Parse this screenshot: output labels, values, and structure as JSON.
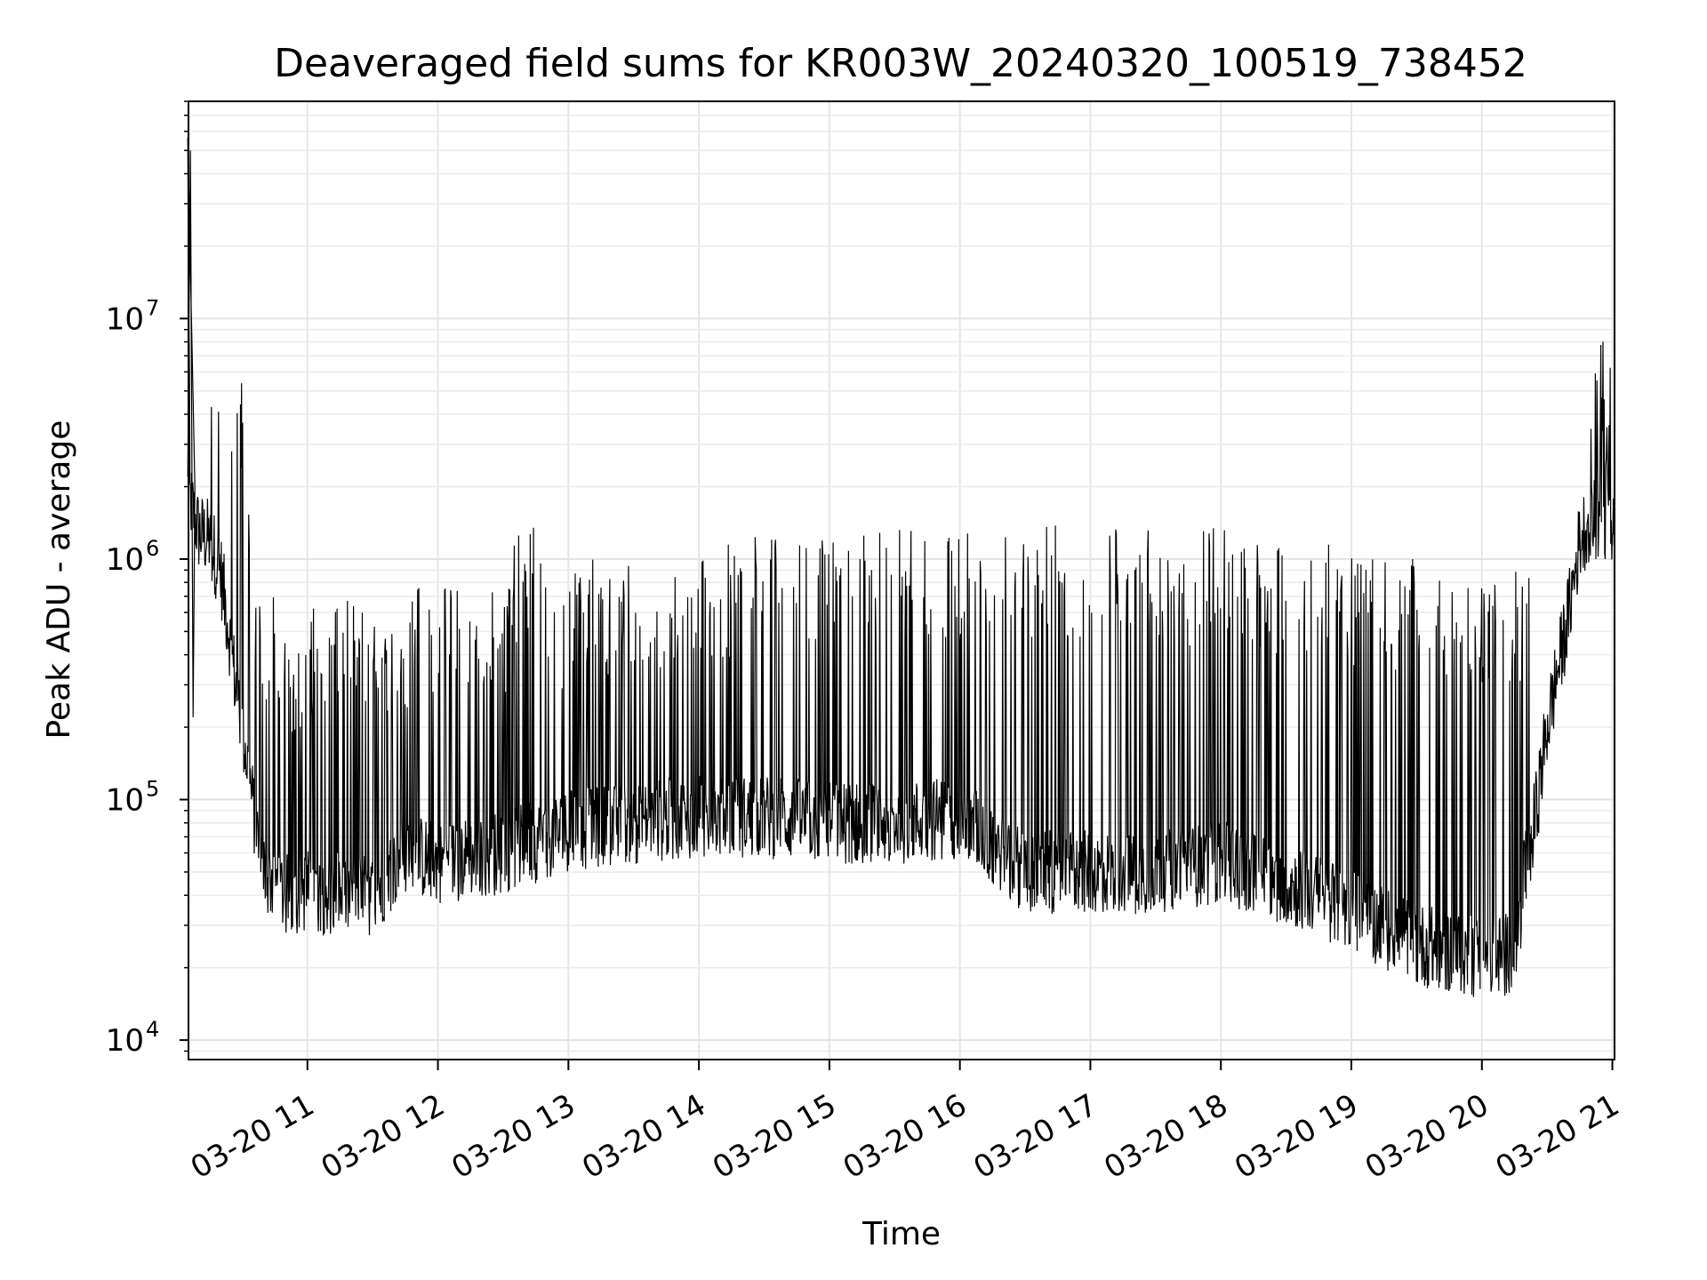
{
  "chart_data": {
    "type": "line",
    "title": "Deaveraged field sums for KR003W_20240320_100519_738452",
    "xlabel": "Time",
    "ylabel": "Peak ADU - average",
    "y_scale": "log",
    "y_ticks": [
      {
        "value": 10000,
        "base": "10",
        "exp": "4"
      },
      {
        "value": 100000,
        "base": "10",
        "exp": "5"
      },
      {
        "value": 1000000,
        "base": "10",
        "exp": "6"
      },
      {
        "value": 10000000,
        "base": "10",
        "exp": "7"
      }
    ],
    "x_ticks": [
      {
        "value": "2024-03-20 11:00",
        "label": "03-20 11"
      },
      {
        "value": "2024-03-20 12:00",
        "label": "03-20 12"
      },
      {
        "value": "2024-03-20 13:00",
        "label": "03-20 13"
      },
      {
        "value": "2024-03-20 14:00",
        "label": "03-20 14"
      },
      {
        "value": "2024-03-20 15:00",
        "label": "03-20 15"
      },
      {
        "value": "2024-03-20 16:00",
        "label": "03-20 16"
      },
      {
        "value": "2024-03-20 17:00",
        "label": "03-20 17"
      },
      {
        "value": "2024-03-20 18:00",
        "label": "03-20 18"
      },
      {
        "value": "2024-03-20 19:00",
        "label": "03-20 19"
      },
      {
        "value": "2024-03-20 20:00",
        "label": "03-20 20"
      },
      {
        "value": "2024-03-20 21:00",
        "label": "03-20 21"
      }
    ],
    "xlim": [
      "2024-03-20 10:05:19",
      "2024-03-20 21:01"
    ],
    "ylim": [
      8300,
      80000000
    ],
    "grid": true,
    "series": [
      {
        "color": "#000000",
        "x": [
          "2024-03-20 10:05",
          "2024-03-20 10:06",
          "2024-03-20 10:08",
          "2024-03-20 10:10",
          "2024-03-20 10:15",
          "2024-03-20 10:20",
          "2024-03-20 10:24",
          "2024-03-20 10:27",
          "2024-03-20 10:30",
          "2024-03-20 10:33",
          "2024-03-20 10:36",
          "2024-03-20 10:40",
          "2024-03-20 10:45",
          "2024-03-20 10:50",
          "2024-03-20 11:00",
          "2024-03-20 11:15",
          "2024-03-20 11:30",
          "2024-03-20 11:45",
          "2024-03-20 12:00",
          "2024-03-20 12:30",
          "2024-03-20 13:00",
          "2024-03-20 13:30",
          "2024-03-20 14:00",
          "2024-03-20 14:30",
          "2024-03-20 15:00",
          "2024-03-20 15:30",
          "2024-03-20 16:00",
          "2024-03-20 16:30",
          "2024-03-20 17:00",
          "2024-03-20 17:30",
          "2024-03-20 18:00",
          "2024-03-20 18:30",
          "2024-03-20 19:00",
          "2024-03-20 19:30",
          "2024-03-20 20:00",
          "2024-03-20 20:15",
          "2024-03-20 20:20",
          "2024-03-20 20:25",
          "2024-03-20 20:30",
          "2024-03-20 20:35",
          "2024-03-20 20:40",
          "2024-03-20 20:45",
          "2024-03-20 20:50",
          "2024-03-20 20:55",
          "2024-03-20 21:00"
        ],
        "y": [
          50000000,
          1800000,
          1500000,
          1300000,
          1200000,
          900000,
          500000,
          300000,
          200000,
          130000,
          80000,
          50000,
          45000,
          40000,
          42000,
          40000,
          40000,
          60000,
          55000,
          60000,
          75000,
          80000,
          85000,
          85000,
          80000,
          80000,
          85000,
          50000,
          50000,
          50000,
          55000,
          45000,
          35000,
          25000,
          22000,
          23000,
          50000,
          90000,
          200000,
          350000,
          600000,
          1200000,
          1500000,
          1400000,
          1300000
        ]
      }
    ],
    "spikes": {
      "x": [
        "2024-03-20 10:24",
        "2024-03-20 10:27",
        "2024-03-20 10:40",
        "2024-03-20 10:50",
        "2024-03-20 11:00",
        "2024-03-20 11:10",
        "2024-03-20 11:20",
        "2024-03-20 11:30",
        "2024-03-20 11:38",
        "2024-03-20 11:47",
        "2024-03-20 11:55",
        "2024-03-20 12:05",
        "2024-03-20 12:15",
        "2024-03-20 12:25",
        "2024-03-20 12:40",
        "2024-03-20 12:50",
        "2024-03-20 13:00",
        "2024-03-20 13:10",
        "2024-03-20 13:20",
        "2024-03-20 13:35",
        "2024-03-20 13:45",
        "2024-03-20 14:00",
        "2024-03-20 14:15",
        "2024-03-20 14:30",
        "2024-03-20 14:45",
        "2024-03-20 15:00",
        "2024-03-20 15:10",
        "2024-03-20 15:20",
        "2024-03-20 15:35",
        "2024-03-20 15:50",
        "2024-03-20 16:05",
        "2024-03-20 16:20",
        "2024-03-20 16:35",
        "2024-03-20 16:50",
        "2024-03-20 17:05",
        "2024-03-20 17:20",
        "2024-03-20 17:35",
        "2024-03-20 17:45",
        "2024-03-20 18:00",
        "2024-03-20 18:15",
        "2024-03-20 18:30",
        "2024-03-20 18:45",
        "2024-03-20 19:00",
        "2024-03-20 19:15",
        "2024-03-20 19:30",
        "2024-03-20 19:45",
        "2024-03-20 19:55",
        "2024-03-20 20:05",
        "2024-03-20 20:15",
        "2024-03-20 20:58"
      ],
      "y": [
        7200000,
        2000000,
        700000,
        450000,
        650000,
        700000,
        650000,
        650000,
        600000,
        850000,
        800000,
        800000,
        850000,
        800000,
        1350000,
        850000,
        950000,
        1000000,
        950000,
        1050000,
        1100000,
        1150000,
        1200000,
        1250000,
        1300000,
        1300000,
        1300000,
        1300000,
        1350000,
        1300000,
        1350000,
        1400000,
        1400000,
        1400000,
        1400000,
        1400000,
        1400000,
        1350000,
        1400000,
        1300000,
        1200000,
        1150000,
        1100000,
        1000000,
        1000000,
        850000,
        800000,
        850000,
        900000,
        8200000
      ]
    }
  }
}
